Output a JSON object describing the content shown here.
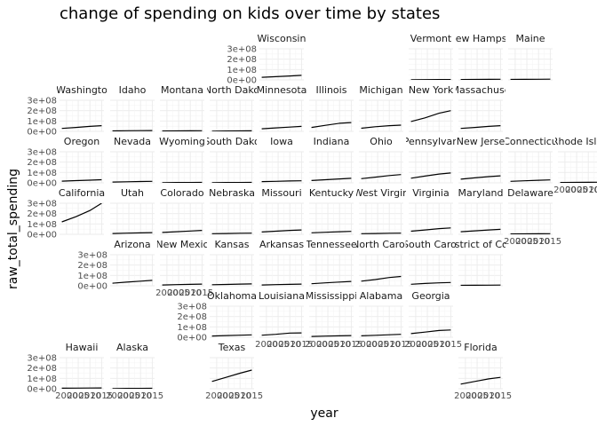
{
  "chart_data": {
    "type": "line",
    "title": "change of spending on kids over time by states",
    "xlabel": "year",
    "ylabel": "raw_total_spending",
    "x_range": [
      1997,
      2016
    ],
    "x_ticks": [
      2000,
      2005,
      2010,
      2015
    ],
    "x_tick_labels": [
      "2000",
      "2005",
      "2010",
      "2015"
    ],
    "y_range": [
      0,
      300000000
    ],
    "y_ticks": [
      0,
      100000000,
      200000000,
      300000000
    ],
    "y_tick_labels": [
      "0e+00",
      "1e+08",
      "2e+08",
      "3e+08"
    ],
    "grid": true,
    "facets": [
      {
        "label": "Wisconsin",
        "values": [
          25000000,
          31000000,
          38000000,
          44000000
        ]
      },
      {
        "label": "Vermont",
        "values": [
          2000000,
          2500000,
          3000000,
          3500000
        ]
      },
      {
        "label": "New Hampsh",
        "values": [
          3000000,
          4000000,
          5000000,
          6000000
        ]
      },
      {
        "label": "Maine",
        "values": [
          4000000,
          5000000,
          6000000,
          7000000
        ]
      },
      {
        "label": "Washingto",
        "values": [
          28000000,
          38000000,
          48000000,
          55000000
        ]
      },
      {
        "label": "Idaho",
        "values": [
          4000000,
          6000000,
          7000000,
          8000000
        ]
      },
      {
        "label": "Montana",
        "values": [
          3000000,
          4000000,
          5000000,
          6000000
        ]
      },
      {
        "label": "North Dako",
        "values": [
          2000000,
          3000000,
          4000000,
          5000000
        ]
      },
      {
        "label": "Minnesota",
        "values": [
          25000000,
          33000000,
          41000000,
          48000000
        ]
      },
      {
        "label": "Illinois",
        "values": [
          38000000,
          58000000,
          78000000,
          85000000
        ]
      },
      {
        "label": "Michigan",
        "values": [
          30000000,
          45000000,
          55000000,
          60000000
        ]
      },
      {
        "label": "New York",
        "values": [
          95000000,
          130000000,
          175000000,
          200000000
        ]
      },
      {
        "label": "Massachuse",
        "values": [
          28000000,
          38000000,
          48000000,
          55000000
        ]
      },
      {
        "label": "Oregon",
        "values": [
          16000000,
          21000000,
          26000000,
          30000000
        ]
      },
      {
        "label": "Nevada",
        "values": [
          8000000,
          10000000,
          13000000,
          15000000
        ]
      },
      {
        "label": "Wyoming",
        "values": [
          2000000,
          3000000,
          3000000,
          4000000
        ]
      },
      {
        "label": "South Dako",
        "values": [
          2000000,
          3000000,
          3000000,
          4000000
        ]
      },
      {
        "label": "Iowa",
        "values": [
          12000000,
          15000000,
          18000000,
          20000000
        ]
      },
      {
        "label": "Indiana",
        "values": [
          22000000,
          30000000,
          38000000,
          44000000
        ]
      },
      {
        "label": "Ohio",
        "values": [
          40000000,
          55000000,
          70000000,
          80000000
        ]
      },
      {
        "label": "Pennsylvan",
        "values": [
          45000000,
          65000000,
          85000000,
          95000000
        ]
      },
      {
        "label": "New Jerse",
        "values": [
          35000000,
          48000000,
          60000000,
          68000000
        ]
      },
      {
        "label": "Connecticu",
        "values": [
          15000000,
          20000000,
          25000000,
          28000000
        ]
      },
      {
        "label": "Rhode Islan",
        "values": [
          3000000,
          4000000,
          5000000,
          6000000
        ]
      },
      {
        "label": "California",
        "values": [
          120000000,
          170000000,
          230000000,
          300000000
        ]
      },
      {
        "label": "Utah",
        "values": [
          8000000,
          11000000,
          14000000,
          16000000
        ]
      },
      {
        "label": "Colorado",
        "values": [
          18000000,
          25000000,
          32000000,
          38000000
        ]
      },
      {
        "label": "Nebraska",
        "values": [
          6000000,
          8000000,
          10000000,
          11000000
        ]
      },
      {
        "label": "Missouri",
        "values": [
          22000000,
          30000000,
          38000000,
          42000000
        ]
      },
      {
        "label": "Kentucky",
        "values": [
          15000000,
          20000000,
          25000000,
          28000000
        ]
      },
      {
        "label": "West Virgin",
        "values": [
          6000000,
          8000000,
          10000000,
          11000000
        ]
      },
      {
        "label": "Virginia",
        "values": [
          30000000,
          42000000,
          55000000,
          62000000
        ]
      },
      {
        "label": "Maryland",
        "values": [
          25000000,
          33000000,
          42000000,
          48000000
        ]
      },
      {
        "label": "Delaware",
        "values": [
          3000000,
          4000000,
          5000000,
          6000000
        ]
      },
      {
        "label": "Arizona",
        "values": [
          25000000,
          35000000,
          45000000,
          52000000
        ]
      },
      {
        "label": "New Mexic",
        "values": [
          8000000,
          11000000,
          14000000,
          16000000
        ]
      },
      {
        "label": "Kansas",
        "values": [
          10000000,
          13000000,
          16000000,
          18000000
        ]
      },
      {
        "label": "Arkansas",
        "values": [
          8000000,
          11000000,
          14000000,
          16000000
        ]
      },
      {
        "label": "Tennessee",
        "values": [
          20000000,
          28000000,
          36000000,
          42000000
        ]
      },
      {
        "label": "North Caroli",
        "values": [
          45000000,
          60000000,
          80000000,
          90000000
        ]
      },
      {
        "label": "South Carol",
        "values": [
          15000000,
          22000000,
          28000000,
          32000000
        ]
      },
      {
        "label": "District of Colu",
        "values": [
          4000000,
          5000000,
          6000000,
          7000000
        ]
      },
      {
        "label": "Oklahoma",
        "values": [
          12000000,
          16000000,
          20000000,
          23000000
        ]
      },
      {
        "label": "Louisiana",
        "values": [
          20000000,
          28000000,
          40000000,
          42000000
        ]
      },
      {
        "label": "Mississippi",
        "values": [
          8000000,
          11000000,
          14000000,
          16000000
        ]
      },
      {
        "label": "Alabama",
        "values": [
          14000000,
          19000000,
          24000000,
          28000000
        ]
      },
      {
        "label": "Georgia",
        "values": [
          35000000,
          50000000,
          65000000,
          70000000
        ]
      },
      {
        "label": "Hawaii",
        "values": [
          5000000,
          6000000,
          7000000,
          8000000
        ]
      },
      {
        "label": "Alaska",
        "values": [
          2000000,
          3000000,
          3000000,
          4000000
        ]
      },
      {
        "label": "Texas",
        "values": [
          70000000,
          110000000,
          150000000,
          180000000
        ]
      },
      {
        "label": "Florida",
        "values": [
          45000000,
          70000000,
          95000000,
          110000000
        ]
      }
    ],
    "x": [
      1998,
      2004,
      2010,
      2015
    ]
  }
}
